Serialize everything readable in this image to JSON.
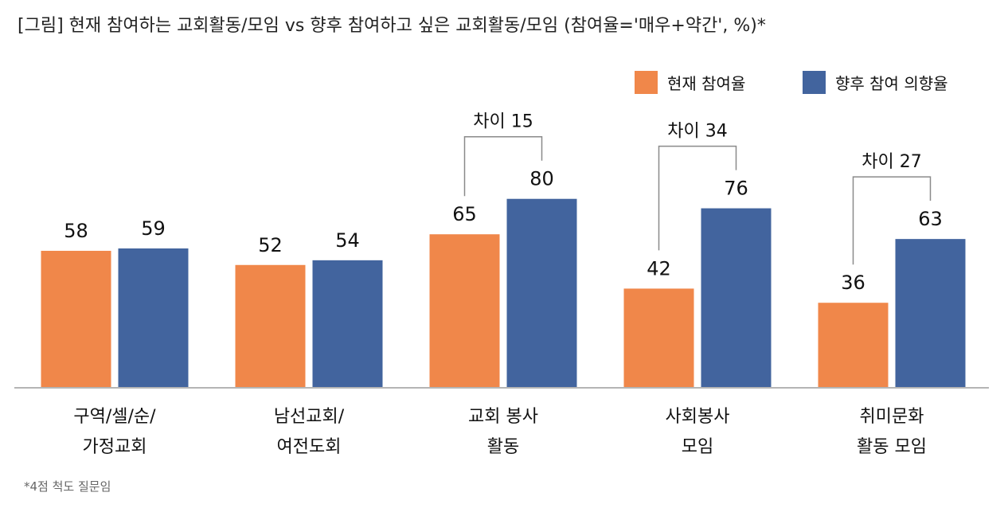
{
  "title": "[그림] 현재 참여하는 교회활동/모임 vs 향후 참여하고 싶은 교회활동/모임 (참여율='매우+약간', %)*",
  "footnote": "*4점 척도 질문임",
  "chart_data": {
    "type": "bar",
    "title": "[그림] 현재 참여하는 교회활동/모임 vs 향후 참여하고 싶은 교회활동/모임 (참여율='매우+약간', %)*",
    "categories": [
      [
        "구역/셀/순/",
        "가정교회"
      ],
      [
        "남선교회/",
        "여전도회"
      ],
      [
        "교회 봉사",
        "활동"
      ],
      [
        "사회봉사",
        "모임"
      ],
      [
        "취미문화",
        "활동 모임"
      ]
    ],
    "series": [
      {
        "name": "현재 참여율",
        "color": "#F0874A",
        "values": [
          58,
          52,
          65,
          42,
          36
        ]
      },
      {
        "name": "향후 참여 의향율",
        "color": "#42649E",
        "values": [
          59,
          54,
          80,
          76,
          63
        ]
      }
    ],
    "annotations": [
      {
        "category_index": 2,
        "text": "차이 15"
      },
      {
        "category_index": 3,
        "text": "차이 34"
      },
      {
        "category_index": 4,
        "text": "차이 27"
      }
    ],
    "ylim": [
      0,
      100
    ],
    "legend_position": "top-right",
    "grid": false
  }
}
